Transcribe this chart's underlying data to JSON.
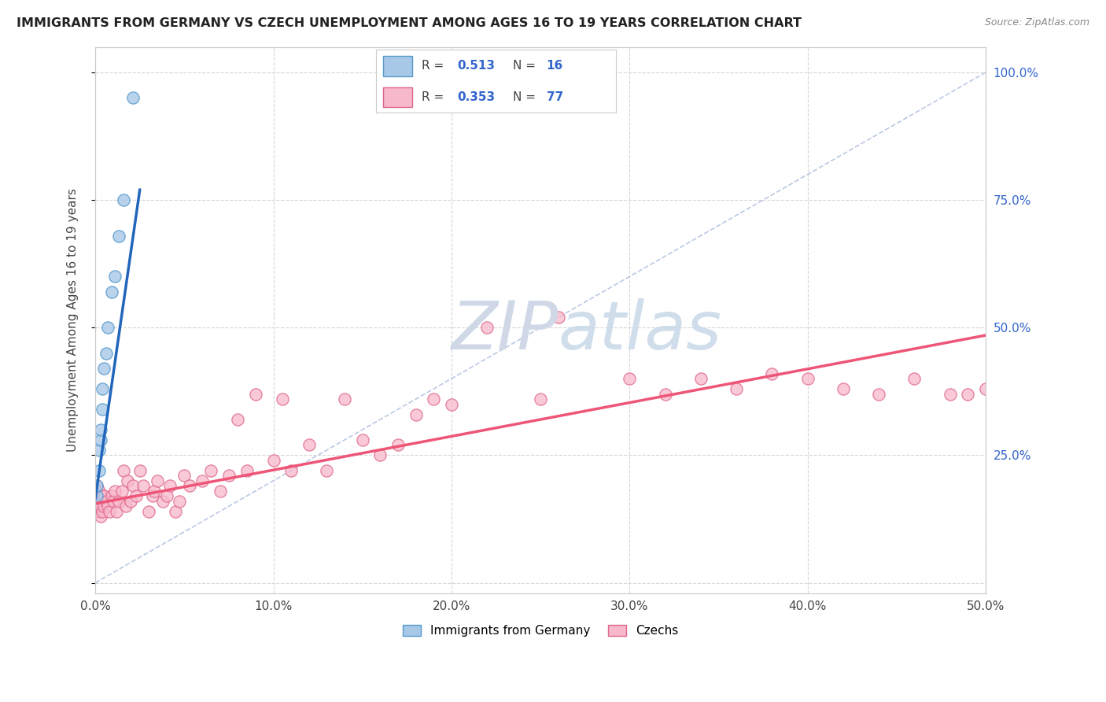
{
  "title": "IMMIGRANTS FROM GERMANY VS CZECH UNEMPLOYMENT AMONG AGES 16 TO 19 YEARS CORRELATION CHART",
  "source": "Source: ZipAtlas.com",
  "ylabel": "Unemployment Among Ages 16 to 19 years",
  "xlim": [
    0.0,
    0.5
  ],
  "ylim": [
    -0.02,
    1.05
  ],
  "legend_label1": "Immigrants from Germany",
  "legend_label2": "Czechs",
  "R1": "0.513",
  "N1": "16",
  "R2": "0.353",
  "N2": "77",
  "color_blue_fill": "#a8c8e8",
  "color_blue_edge": "#5599cc",
  "color_pink_fill": "#f8b8cc",
  "color_pink_edge": "#dd6688",
  "color_line_blue": "#2266bb",
  "color_line_pink": "#ee5577",
  "color_diagonal": "#aabbdd",
  "watermark_color": "#d0d8e8",
  "blue_scatter_x": [
    0.001,
    0.001,
    0.002,
    0.002,
    0.003,
    0.003,
    0.004,
    0.004,
    0.005,
    0.006,
    0.007,
    0.009,
    0.011,
    0.013,
    0.016,
    0.021
  ],
  "blue_scatter_y": [
    0.17,
    0.19,
    0.22,
    0.26,
    0.28,
    0.3,
    0.34,
    0.38,
    0.42,
    0.45,
    0.5,
    0.57,
    0.6,
    0.68,
    0.75,
    0.95
  ],
  "pink_scatter_x": [
    0.001,
    0.001,
    0.001,
    0.001,
    0.002,
    0.002,
    0.002,
    0.002,
    0.003,
    0.003,
    0.003,
    0.004,
    0.004,
    0.005,
    0.005,
    0.006,
    0.007,
    0.008,
    0.009,
    0.01,
    0.011,
    0.012,
    0.013,
    0.015,
    0.016,
    0.017,
    0.018,
    0.02,
    0.021,
    0.023,
    0.025,
    0.027,
    0.03,
    0.032,
    0.033,
    0.035,
    0.038,
    0.04,
    0.042,
    0.045,
    0.047,
    0.05,
    0.053,
    0.06,
    0.065,
    0.07,
    0.075,
    0.08,
    0.085,
    0.09,
    0.1,
    0.105,
    0.11,
    0.12,
    0.13,
    0.14,
    0.15,
    0.16,
    0.17,
    0.18,
    0.19,
    0.2,
    0.22,
    0.25,
    0.26,
    0.3,
    0.32,
    0.34,
    0.36,
    0.38,
    0.4,
    0.42,
    0.44,
    0.46,
    0.48,
    0.49,
    0.5
  ],
  "pink_scatter_y": [
    0.14,
    0.16,
    0.17,
    0.19,
    0.14,
    0.15,
    0.16,
    0.18,
    0.13,
    0.15,
    0.17,
    0.14,
    0.17,
    0.15,
    0.17,
    0.16,
    0.15,
    0.14,
    0.17,
    0.16,
    0.18,
    0.14,
    0.16,
    0.18,
    0.22,
    0.15,
    0.2,
    0.16,
    0.19,
    0.17,
    0.22,
    0.19,
    0.14,
    0.17,
    0.18,
    0.2,
    0.16,
    0.17,
    0.19,
    0.14,
    0.16,
    0.21,
    0.19,
    0.2,
    0.22,
    0.18,
    0.21,
    0.32,
    0.22,
    0.37,
    0.24,
    0.36,
    0.22,
    0.27,
    0.22,
    0.36,
    0.28,
    0.25,
    0.27,
    0.33,
    0.36,
    0.35,
    0.5,
    0.36,
    0.52,
    0.4,
    0.37,
    0.4,
    0.38,
    0.41,
    0.4,
    0.38,
    0.37,
    0.4,
    0.37,
    0.37,
    0.38
  ],
  "blue_line_x": [
    0.0,
    0.025
  ],
  "blue_line_y": [
    0.165,
    0.77
  ],
  "pink_line_x": [
    0.0,
    0.5
  ],
  "pink_line_y": [
    0.155,
    0.485
  ],
  "diagonal_line_x": [
    0.0,
    0.5
  ],
  "diagonal_line_y": [
    0.0,
    1.0
  ],
  "x_tick_vals": [
    0.0,
    0.1,
    0.2,
    0.3,
    0.4,
    0.5
  ],
  "x_tick_labels": [
    "0.0%",
    "10.0%",
    "20.0%",
    "30.0%",
    "40.0%",
    "50.0%"
  ],
  "y_tick_vals": [
    0.0,
    0.25,
    0.5,
    0.75,
    1.0
  ],
  "y_right_labels": [
    "",
    "25.0%",
    "50.0%",
    "75.0%",
    "100.0%"
  ]
}
